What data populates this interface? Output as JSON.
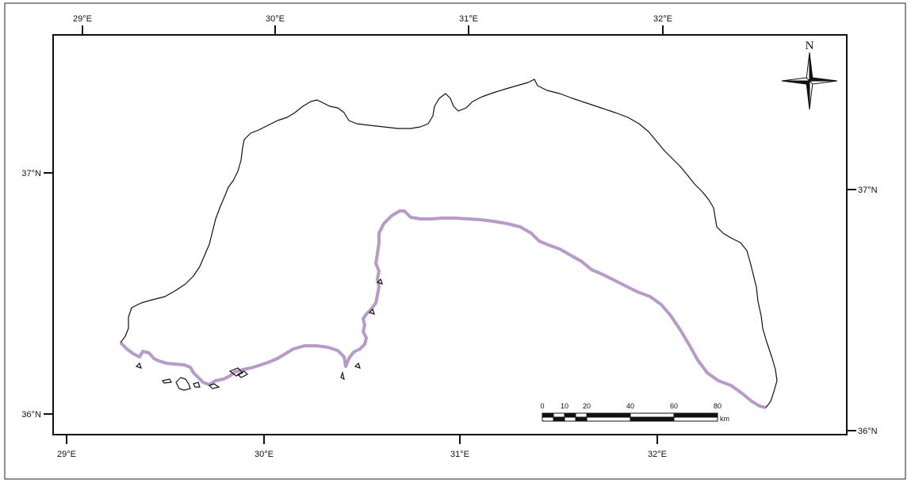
{
  "map": {
    "top_ticks": [
      "29°E",
      "30°E",
      "31°E",
      "32°E"
    ],
    "bottom_ticks": [
      "29°E",
      "30°E",
      "31°E",
      "32°E"
    ],
    "left_ticks": [
      "37°N",
      "36°N"
    ],
    "right_ticks": [
      "37°N",
      "36°N"
    ],
    "boundary_color": "#111111",
    "coastline_color": "#b89ac8"
  },
  "north_arrow": {
    "label": "N"
  },
  "scale_bar": {
    "labels": [
      "0",
      "10",
      "20",
      "40",
      "60",
      "80"
    ],
    "unit": "km"
  }
}
